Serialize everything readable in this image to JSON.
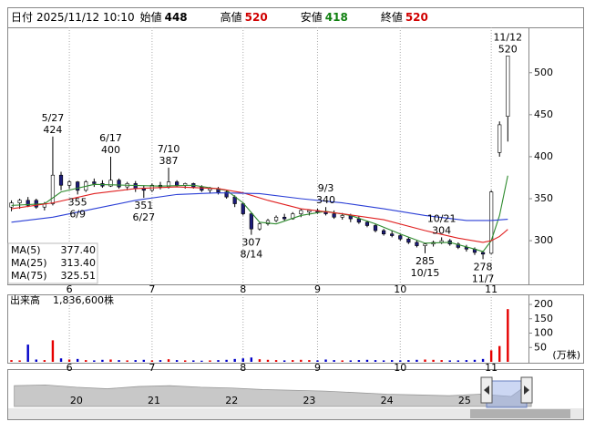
{
  "header": {
    "date_label": "日付",
    "date": "2025/11/12 10:10",
    "open_label": "始値",
    "open": 448,
    "high_label": "高値",
    "high": 520,
    "low_label": "安値",
    "low": 418,
    "close_label": "終値",
    "close": 520
  },
  "chart_data": [
    {
      "type": "candlestick",
      "xlim": [
        -0.5,
        62.5
      ],
      "ylim": [
        248,
        554
      ],
      "yticks": [
        300,
        350,
        400,
        450,
        500
      ],
      "xticks": [
        {
          "value": 7,
          "label": "6"
        },
        {
          "value": 17,
          "label": "7"
        },
        {
          "value": 28,
          "label": "8"
        },
        {
          "value": 37,
          "label": "9"
        },
        {
          "value": 47,
          "label": "10"
        },
        {
          "value": 58,
          "label": "11"
        }
      ],
      "grid": true,
      "up_color": "#ffffff",
      "down_color": "#1c1c7a",
      "edge_color": "#000000",
      "open": [
        340,
        345,
        348,
        348,
        340,
        344,
        378,
        366,
        370,
        360,
        370,
        368,
        365,
        372,
        364,
        368,
        362,
        360,
        366,
        364,
        370,
        366,
        368,
        364,
        360,
        362,
        358,
        352,
        344,
        332,
        314,
        320,
        324,
        328,
        326,
        332,
        334,
        336,
        334,
        332,
        328,
        330,
        326,
        322,
        318,
        312,
        308,
        306,
        302,
        298,
        294,
        296,
        298,
        300,
        296,
        292,
        290,
        286,
        285,
        405,
        448
      ],
      "high": [
        348,
        350,
        352,
        350,
        346,
        424,
        382,
        372,
        371,
        372,
        374,
        372,
        400,
        374,
        370,
        371,
        366,
        368,
        370,
        387,
        372,
        369,
        369,
        366,
        364,
        364,
        360,
        354,
        346,
        334,
        322,
        326,
        330,
        332,
        334,
        338,
        337,
        338,
        340,
        336,
        333,
        332,
        329,
        324,
        320,
        314,
        312,
        308,
        304,
        300,
        297,
        300,
        304,
        302,
        298,
        295,
        292,
        288,
        360,
        442,
        520
      ],
      "low": [
        335,
        338,
        340,
        338,
        336,
        342,
        360,
        362,
        355,
        358,
        364,
        363,
        364,
        362,
        360,
        358,
        351,
        358,
        361,
        362,
        364,
        362,
        362,
        358,
        357,
        355,
        350,
        340,
        330,
        307,
        312,
        318,
        322,
        324,
        325,
        328,
        330,
        332,
        330,
        326,
        325,
        322,
        320,
        316,
        310,
        306,
        304,
        300,
        296,
        292,
        285,
        293,
        296,
        294,
        290,
        287,
        283,
        278,
        284,
        400,
        418
      ],
      "close": [
        345,
        348,
        342,
        340,
        344,
        378,
        366,
        370,
        360,
        370,
        368,
        365,
        372,
        364,
        368,
        362,
        360,
        366,
        364,
        370,
        366,
        368,
        364,
        360,
        362,
        358,
        352,
        344,
        332,
        314,
        320,
        324,
        328,
        326,
        332,
        336,
        336,
        334,
        332,
        328,
        330,
        326,
        322,
        318,
        312,
        308,
        306,
        302,
        298,
        294,
        296,
        298,
        300,
        296,
        292,
        290,
        286,
        284,
        358,
        438,
        520
      ],
      "annotations": [
        {
          "index": 5,
          "date": "5/27",
          "value": 424,
          "side": "high"
        },
        {
          "index": 8,
          "date": "6/9",
          "value": 355,
          "side": "low"
        },
        {
          "index": 12,
          "date": "6/17",
          "value": 400,
          "side": "high"
        },
        {
          "index": 16,
          "date": "6/27",
          "value": 351,
          "side": "low"
        },
        {
          "index": 19,
          "date": "7/10",
          "value": 387,
          "side": "high"
        },
        {
          "index": 29,
          "date": "8/14",
          "value": 307,
          "side": "low"
        },
        {
          "index": 38,
          "date": "9/3",
          "value": 340,
          "side": "high"
        },
        {
          "index": 50,
          "date": "10/15",
          "value": 285,
          "side": "low"
        },
        {
          "index": 52,
          "date": "10/21",
          "value": 304,
          "side": "high"
        },
        {
          "index": 57,
          "date": "11/7",
          "value": 278,
          "side": "low"
        },
        {
          "index": 60,
          "date": "11/12",
          "value": 520,
          "side": "high"
        }
      ],
      "series": [
        {
          "name": "MA(5)",
          "color": "#2e8b2e",
          "legend_value": {
            "value": 377.4,
            "label": "377.40"
          },
          "x": [
            0,
            4,
            6,
            10,
            14,
            18,
            22,
            26,
            28,
            30,
            32,
            35,
            38,
            41,
            44,
            47,
            50,
            53,
            56,
            57,
            58,
            59,
            60
          ],
          "values": [
            342,
            344,
            358,
            367,
            366,
            365,
            366,
            360,
            345,
            322,
            320,
            330,
            335,
            330,
            320,
            308,
            297,
            298,
            290,
            287,
            300,
            330,
            377.4
          ]
        },
        {
          "name": "MA(25)",
          "color": "#e02020",
          "legend_value": {
            "value": 313.4,
            "label": "313.40"
          },
          "x": [
            0,
            5,
            10,
            15,
            20,
            25,
            28,
            31,
            35,
            40,
            45,
            50,
            54,
            57,
            58,
            59,
            60
          ],
          "values": [
            338,
            345,
            356,
            362,
            364,
            362,
            357,
            348,
            338,
            332,
            325,
            312,
            303,
            298,
            300,
            305,
            313.4
          ]
        },
        {
          "name": "MA(75)",
          "color": "#2b3fd6",
          "legend_value": {
            "value": 325.51,
            "label": "325.51"
          },
          "x": [
            0,
            5,
            10,
            15,
            20,
            25,
            30,
            35,
            40,
            45,
            50,
            55,
            58,
            60
          ],
          "values": [
            322,
            328,
            338,
            348,
            355,
            357,
            356,
            350,
            345,
            338,
            330,
            324,
            324,
            325.51
          ]
        }
      ]
    },
    {
      "type": "bar",
      "label": "出来高",
      "total": {
        "value": 183.66,
        "label": "1,836,600株"
      },
      "unit_label": "(万株)",
      "xlim": [
        -0.5,
        62.5
      ],
      "ylim": [
        0,
        235
      ],
      "yticks": [
        50,
        100,
        150,
        200
      ],
      "xticks": [
        {
          "value": 7,
          "label": "6"
        },
        {
          "value": 17,
          "label": "7"
        },
        {
          "value": 28,
          "label": "8"
        },
        {
          "value": 37,
          "label": "9"
        },
        {
          "value": 47,
          "label": "10"
        },
        {
          "value": 58,
          "label": "11"
        }
      ],
      "up_color": "#e60000",
      "down_color": "#0000c8",
      "values": [
        6,
        5,
        60,
        8,
        6,
        75,
        12,
        8,
        10,
        6,
        5,
        7,
        8,
        6,
        5,
        6,
        7,
        5,
        6,
        9,
        6,
        5,
        5,
        4,
        5,
        6,
        7,
        10,
        12,
        15,
        9,
        7,
        6,
        5,
        6,
        7,
        6,
        5,
        8,
        6,
        5,
        5,
        6,
        7,
        6,
        5,
        6,
        5,
        6,
        7,
        8,
        7,
        6,
        5,
        5,
        6,
        7,
        10,
        40,
        55,
        183.66
      ]
    },
    {
      "type": "area",
      "color": "#c8c8c8",
      "xlim": [
        2019.11,
        2026.41
      ],
      "ylim": [
        200,
        650
      ],
      "xticks": [
        {
          "value": 2020,
          "label": "20"
        },
        {
          "value": 2021,
          "label": "21"
        },
        {
          "value": 2022,
          "label": "22"
        },
        {
          "value": 2023,
          "label": "23"
        },
        {
          "value": 2024,
          "label": "24"
        },
        {
          "value": 2025,
          "label": "25"
        }
      ],
      "x": [
        2019.2,
        2019.6,
        2020,
        2020.4,
        2020.8,
        2021.2,
        2021.6,
        2022,
        2022.4,
        2022.8,
        2023.2,
        2023.6,
        2024,
        2024.4,
        2024.8,
        2025.2,
        2025.6,
        2025.86
      ],
      "values": [
        470,
        480,
        450,
        430,
        460,
        470,
        450,
        440,
        420,
        410,
        400,
        380,
        360,
        350,
        340,
        360,
        330,
        520
      ]
    }
  ]
}
